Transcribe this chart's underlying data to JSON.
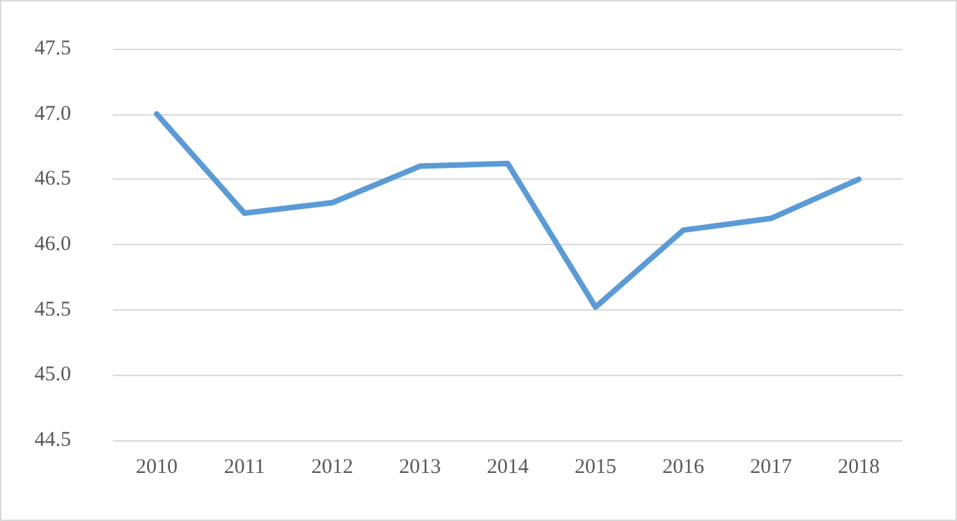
{
  "chart_data": {
    "type": "line",
    "categories": [
      "2010",
      "2011",
      "2012",
      "2013",
      "2014",
      "2015",
      "2016",
      "2017",
      "2018"
    ],
    "series": [
      {
        "color": "#5b9bd5",
        "values": [
          47.0,
          46.24,
          46.32,
          46.6,
          46.62,
          45.52,
          46.11,
          46.2,
          46.5
        ]
      }
    ],
    "ylim": [
      44.5,
      47.5
    ],
    "yticks": [
      44.5,
      {
        "value": 45,
        "label": "45.0"
      },
      45.5,
      {
        "value": 46,
        "label": "46.0"
      },
      46.5,
      {
        "value": 47,
        "label": "47.0"
      },
      47.5
    ],
    "grid": "y",
    "marker": "none",
    "line_style": "solid"
  }
}
